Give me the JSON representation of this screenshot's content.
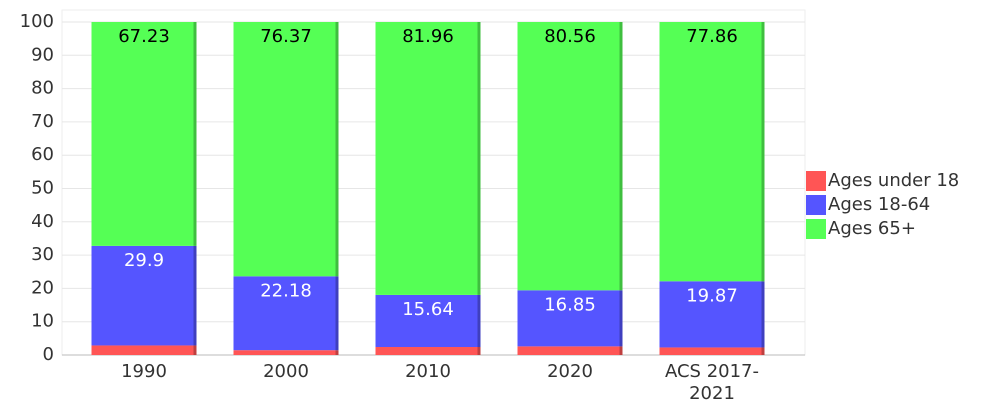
{
  "chart_data": {
    "type": "stacked_bar",
    "categories": [
      "1990",
      "2000",
      "2010",
      "2020",
      "ACS 2017-2021"
    ],
    "series": [
      {
        "name": "Ages under 18",
        "color": "#ff5555",
        "values": [
          2.87,
          1.45,
          2.4,
          2.59,
          2.27
        ],
        "labels": false
      },
      {
        "name": "Ages 18-64",
        "color": "#5555ff",
        "values": [
          29.9,
          22.18,
          15.64,
          16.85,
          19.87
        ],
        "labels": true,
        "label_color": "#ffffff"
      },
      {
        "name": "Ages 65+",
        "color": "#55ff55",
        "values": [
          67.23,
          76.37,
          81.96,
          80.56,
          77.86
        ],
        "labels": true,
        "label_color": "#000000"
      }
    ],
    "ylim": [
      0,
      100
    ],
    "yticks": [
      0,
      10,
      20,
      30,
      40,
      50,
      60,
      70,
      80,
      90,
      100
    ],
    "grid": true,
    "legend": "right"
  }
}
